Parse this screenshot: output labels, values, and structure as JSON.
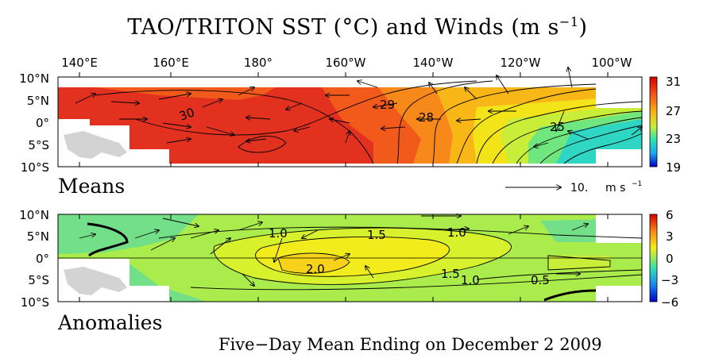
{
  "title": "TAO/TRITON SST (°C) and Winds (m s",
  "title_sup": "−1",
  "title_close": ")",
  "lon_labels": [
    "140°E",
    "160°E",
    "180°",
    "160°W",
    "140°W",
    "120°W",
    "100°W"
  ],
  "lat_labels": [
    "10°N",
    "5°N",
    "0°",
    "5°S",
    "10°S"
  ],
  "means": {
    "label": "Means",
    "colorbar_ticks": [
      "31",
      "27",
      "23",
      "19"
    ],
    "contour_labels": [
      "30",
      "29",
      "28",
      "25"
    ],
    "wind_scale": {
      "value": "10.",
      "unit": "m s",
      "unit_sup": "−1"
    },
    "colors": [
      "#e33120",
      "#f25a1c",
      "#f7891a",
      "#f9b617",
      "#f3e419",
      "#c8ee3a",
      "#6fe67e",
      "#2fd6c4"
    ]
  },
  "anomalies": {
    "label": "Anomalies",
    "colorbar_ticks": [
      "6",
      "3",
      "0",
      "−3",
      "−6"
    ],
    "contour_labels": [
      "1.0",
      "1.5",
      "1.0",
      "2.0",
      "1.5",
      "1.0",
      "0.5"
    ],
    "colors": [
      "#73e089",
      "#a9ec4b",
      "#d7f12c",
      "#f3ec1c",
      "#f7d21b"
    ]
  },
  "footer": "Five−Day Mean Ending on December 2 2009"
}
